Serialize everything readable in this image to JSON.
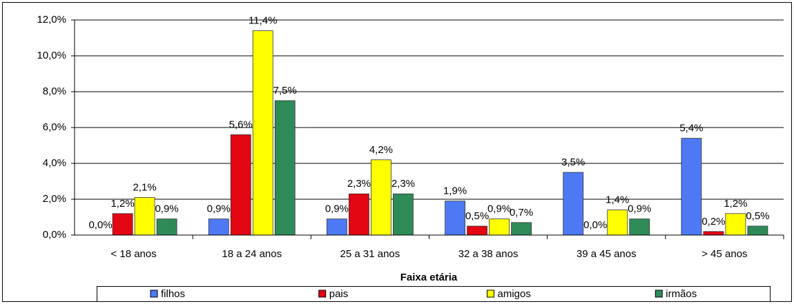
{
  "chart_data": {
    "type": "bar",
    "x_label": "Faixa etária",
    "categories": [
      "< 18 anos",
      "18 a 24 anos",
      "25 a 31 anos",
      "32 a 38 anos",
      "39 a 45 anos",
      "> 45 anos"
    ],
    "series": [
      {
        "name": "filhos",
        "color": "#4d79f5",
        "values": [
          0.0,
          0.9,
          0.9,
          1.9,
          3.5,
          5.4
        ],
        "value_labels": [
          "0,0%",
          "0,9%",
          "0,9%",
          "1,9%",
          "3,5%",
          "5,4%"
        ]
      },
      {
        "name": "pais",
        "color": "#e30613",
        "values": [
          1.2,
          5.6,
          2.3,
          0.5,
          0.0,
          0.2
        ],
        "value_labels": [
          "1,2%",
          "5,6%",
          "2,3%",
          "0,5%",
          "0,0%",
          "0,2%"
        ]
      },
      {
        "name": "amigos",
        "color": "#ffff00",
        "values": [
          2.1,
          11.4,
          4.2,
          0.9,
          1.4,
          1.2
        ],
        "value_labels": [
          "2,1%",
          "11,4%",
          "4,2%",
          "0,9%",
          "1,4%",
          "1,2%"
        ]
      },
      {
        "name": "irmãos",
        "color": "#2e8b57",
        "values": [
          0.9,
          7.5,
          2.3,
          0.7,
          0.9,
          0.5
        ],
        "value_labels": [
          "0,9%",
          "7,5%",
          "2,3%",
          "0,7%",
          "0,9%",
          "0,5%"
        ]
      }
    ],
    "ylim": [
      0,
      12
    ],
    "yticks": [
      {
        "value": 0,
        "label": "0,0%"
      },
      {
        "value": 2,
        "label": "2,0%"
      },
      {
        "value": 4,
        "label": "4,0%"
      },
      {
        "value": 6,
        "label": "6,0%"
      },
      {
        "value": 8,
        "label": "8,0%"
      },
      {
        "value": 10,
        "label": "10,0%"
      },
      {
        "value": 12,
        "label": "12,0%"
      }
    ],
    "grid": true,
    "legend": "bottom"
  }
}
